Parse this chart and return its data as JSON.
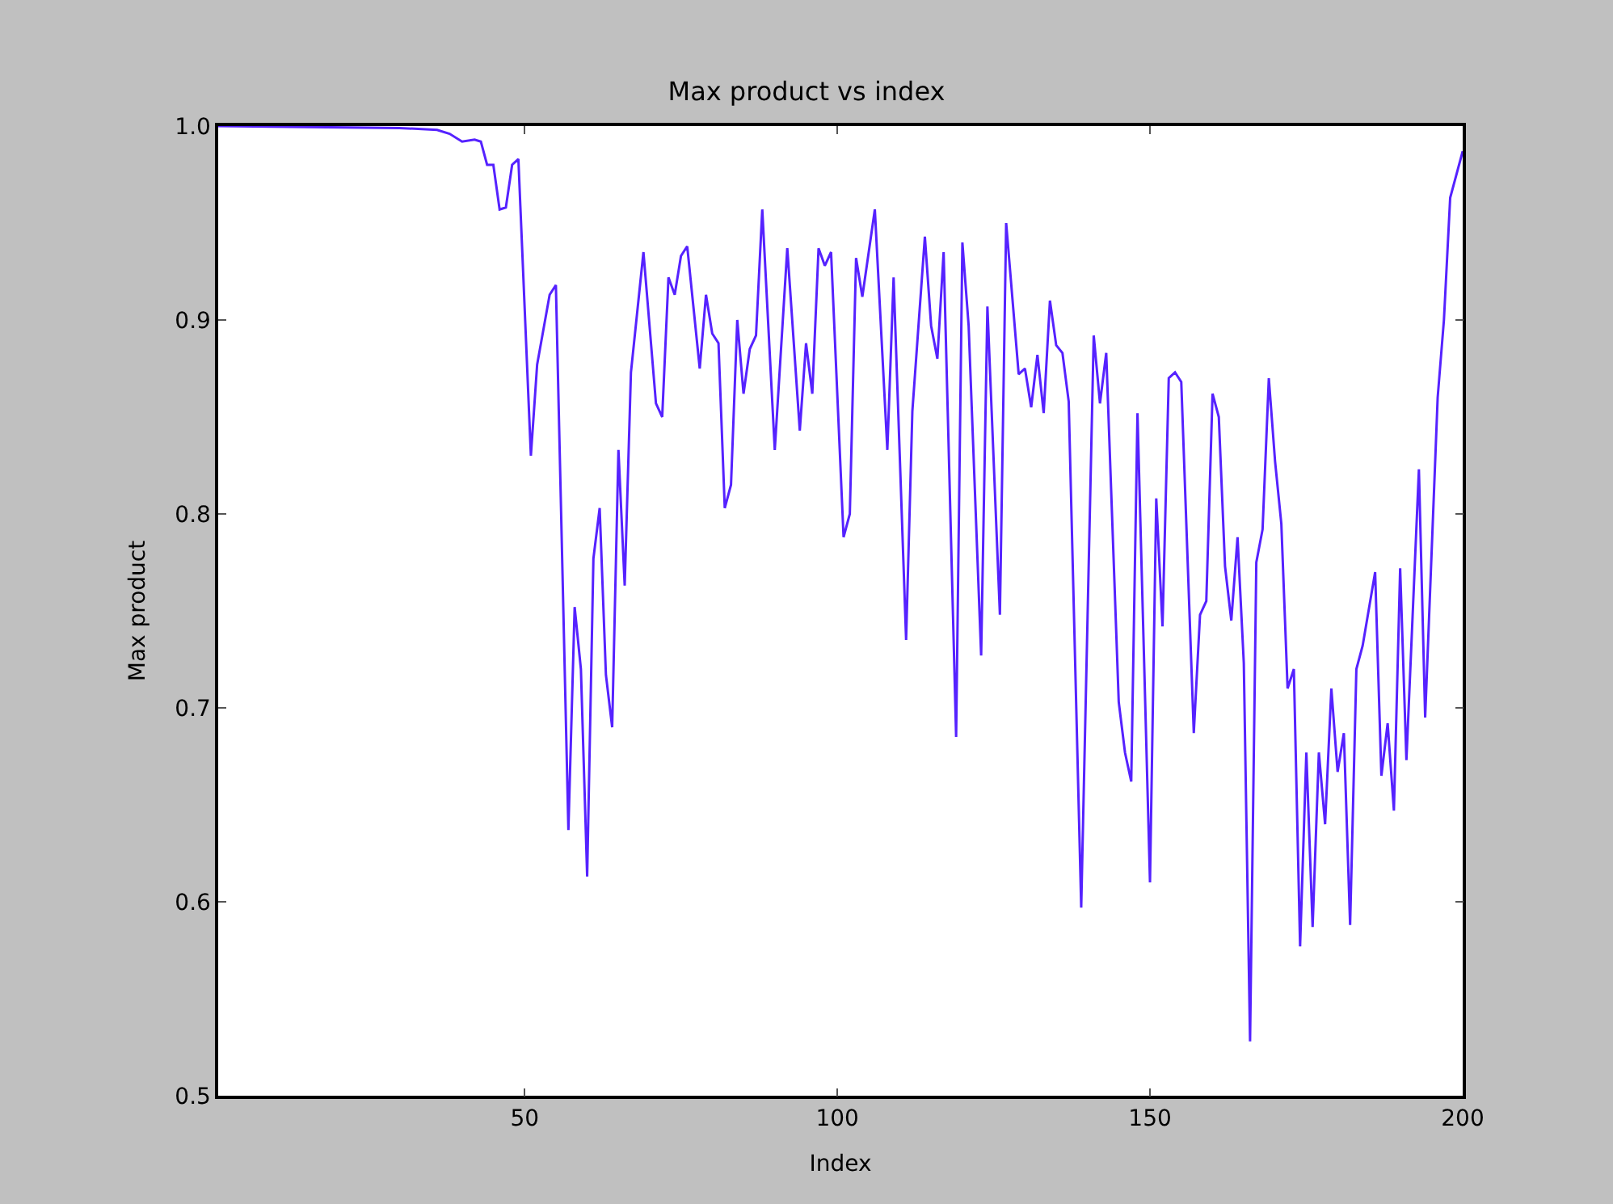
{
  "chart_data": {
    "type": "line",
    "title": "Max product vs index",
    "xlabel": "Index",
    "ylabel": "Max product",
    "x": [
      1,
      30,
      36,
      38,
      40,
      42,
      43,
      44,
      45,
      46,
      47,
      48,
      49,
      51,
      52,
      54,
      55,
      57,
      58,
      59,
      60,
      61,
      62,
      63,
      64,
      65,
      66,
      67,
      69,
      71,
      72,
      73,
      74,
      75,
      76,
      78,
      79,
      80,
      81,
      82,
      83,
      84,
      85,
      86,
      87,
      88,
      90,
      92,
      94,
      95,
      96,
      97,
      98,
      99,
      101,
      102,
      103,
      104,
      106,
      108,
      109,
      111,
      112,
      114,
      115,
      116,
      117,
      119,
      120,
      121,
      123,
      124,
      126,
      127,
      129,
      130,
      131,
      132,
      133,
      134,
      135,
      136,
      137,
      139,
      141,
      142,
      143,
      145,
      146,
      147,
      148,
      150,
      151,
      152,
      153,
      154,
      155,
      157,
      158,
      159,
      160,
      161,
      162,
      163,
      164,
      165,
      166,
      167,
      168,
      169,
      170,
      171,
      172,
      173,
      174,
      175,
      176,
      177,
      178,
      179,
      180,
      181,
      182,
      183,
      184,
      186,
      187,
      188,
      189,
      190,
      191,
      193,
      194,
      196,
      197,
      198,
      200
    ],
    "series": [
      {
        "color": "#5522ff",
        "values": [
          1.0,
          0.999,
          0.998,
          0.996,
          0.992,
          0.993,
          0.992,
          0.98,
          0.98,
          0.957,
          0.958,
          0.98,
          0.983,
          0.83,
          0.877,
          0.913,
          0.918,
          0.637,
          0.752,
          0.72,
          0.613,
          0.777,
          0.803,
          0.717,
          0.69,
          0.833,
          0.763,
          0.873,
          0.935,
          0.857,
          0.85,
          0.922,
          0.913,
          0.933,
          0.938,
          0.875,
          0.913,
          0.893,
          0.888,
          0.803,
          0.815,
          0.9,
          0.862,
          0.885,
          0.892,
          0.957,
          0.833,
          0.937,
          0.843,
          0.888,
          0.862,
          0.937,
          0.928,
          0.935,
          0.788,
          0.8,
          0.932,
          0.912,
          0.957,
          0.833,
          0.922,
          0.735,
          0.853,
          0.943,
          0.897,
          0.88,
          0.935,
          0.685,
          0.94,
          0.897,
          0.727,
          0.907,
          0.748,
          0.95,
          0.872,
          0.875,
          0.855,
          0.882,
          0.852,
          0.91,
          0.887,
          0.883,
          0.858,
          0.597,
          0.892,
          0.857,
          0.883,
          0.703,
          0.677,
          0.662,
          0.852,
          0.61,
          0.808,
          0.742,
          0.87,
          0.873,
          0.868,
          0.687,
          0.748,
          0.755,
          0.862,
          0.85,
          0.773,
          0.745,
          0.788,
          0.723,
          0.528,
          0.775,
          0.792,
          0.87,
          0.827,
          0.795,
          0.71,
          0.72,
          0.577,
          0.677,
          0.587,
          0.677,
          0.64,
          0.71,
          0.667,
          0.687,
          0.588,
          0.72,
          0.732,
          0.77,
          0.665,
          0.692,
          0.647,
          0.772,
          0.673,
          0.823,
          0.695,
          0.86,
          0.9,
          0.963,
          0.987
        ]
      }
    ],
    "xlim": [
      1,
      200
    ],
    "xticks": [
      50,
      100,
      150,
      200
    ],
    "ylim": [
      0.5,
      1.0
    ],
    "yticks": [
      0.5,
      0.6,
      0.7,
      0.8,
      0.9,
      {
        "value": 1.0,
        "label": "1.0"
      }
    ],
    "grid": false,
    "marker": "none",
    "line_style": "solid"
  }
}
